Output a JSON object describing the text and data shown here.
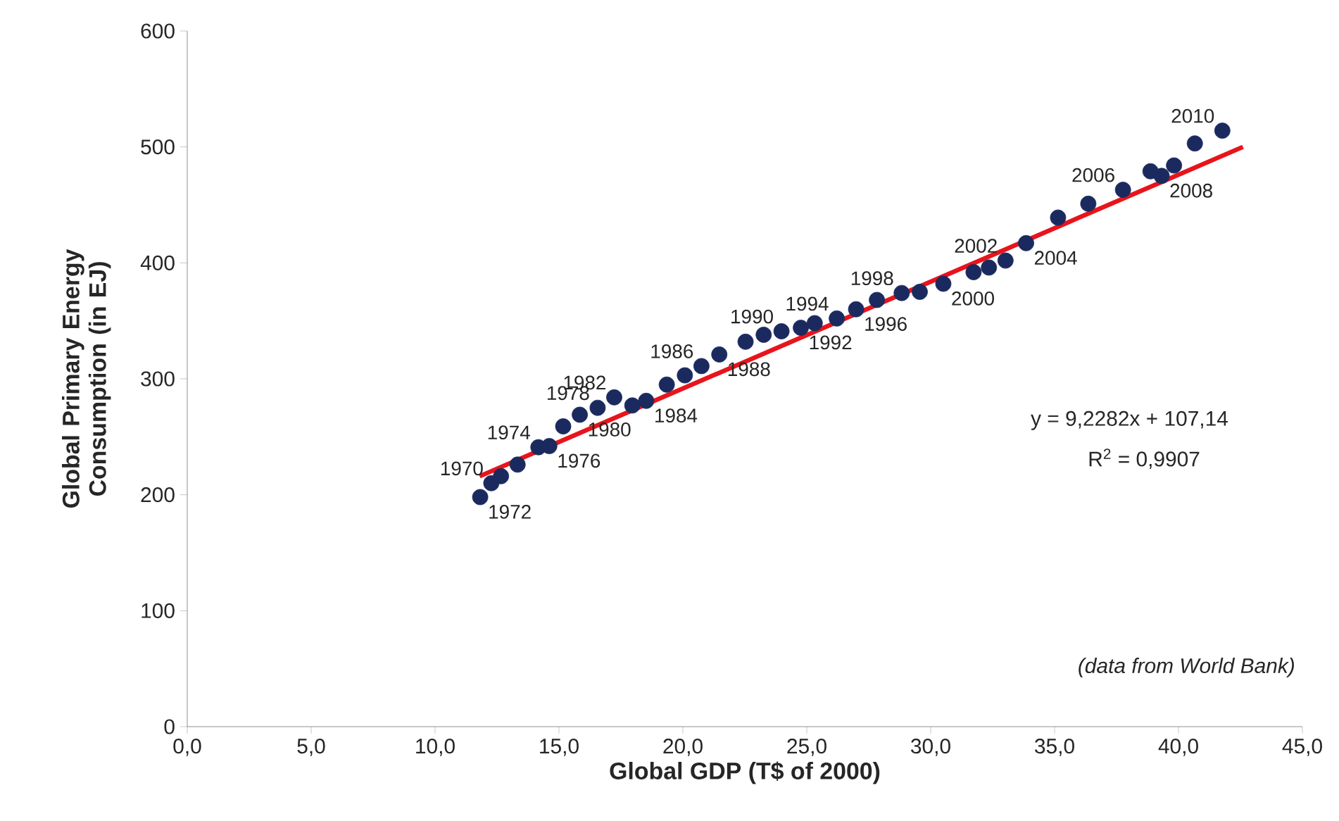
{
  "chart_data": {
    "type": "scatter",
    "xlabel": "Global GDP (T$ of 2000)",
    "ylabel": "Global Primary Energy Consumption (in EJ)",
    "xlim": [
      0,
      45
    ],
    "ylim": [
      0,
      600
    ],
    "xticks": [
      {
        "value": 0,
        "label": "0,0"
      },
      {
        "value": 5,
        "label": "5,0"
      },
      {
        "value": 10,
        "label": "10,0"
      },
      {
        "value": 15,
        "label": "15,0"
      },
      {
        "value": 20,
        "label": "20,0"
      },
      {
        "value": 25,
        "label": "25,0"
      },
      {
        "value": 30,
        "label": "30,0"
      },
      {
        "value": 35,
        "label": "35,0"
      },
      {
        "value": 40,
        "label": "40,0"
      },
      {
        "value": 45,
        "label": "45,0"
      }
    ],
    "yticks": [
      0,
      100,
      200,
      300,
      400,
      500,
      600
    ],
    "series": [
      {
        "marker": "circle",
        "color": "#1b2a5e",
        "x": [
          11.82,
          12.27,
          12.66,
          13.33,
          14.17,
          14.61,
          15.17,
          15.84,
          16.56,
          17.23,
          17.96,
          18.52,
          19.35,
          20.08,
          20.75,
          21.47,
          22.53,
          23.26,
          23.98,
          24.76,
          25.32,
          26.21,
          26.99,
          27.83,
          28.83,
          29.56,
          30.51,
          31.73,
          32.35,
          33.02,
          33.85,
          35.14,
          36.36,
          37.76,
          38.87,
          39.32,
          39.82,
          40.66,
          41.77
        ],
        "values": [
          198,
          210,
          216,
          226,
          241,
          242,
          259,
          269,
          275,
          284,
          277,
          281,
          295,
          303,
          311,
          321,
          332,
          338,
          341,
          344,
          348,
          352,
          360,
          368,
          374,
          375,
          382,
          392,
          396,
          402,
          417,
          439,
          451,
          463,
          479,
          475,
          484,
          503,
          514
        ]
      },
      {
        "type": "line",
        "marker": "none",
        "color": "#e8141c",
        "x": [
          11.8,
          42.6
        ],
        "values": [
          216,
          500
        ]
      }
    ],
    "annotations": [
      {
        "text": "1970",
        "x": 12.27,
        "y": 210
      },
      {
        "text": "1972",
        "x": 11.82,
        "y": 198
      },
      {
        "text": "1974",
        "x": 14.17,
        "y": 241
      },
      {
        "text": "1976",
        "x": 14.61,
        "y": 242
      },
      {
        "text": "1978",
        "x": 16.56,
        "y": 275
      },
      {
        "text": "1980",
        "x": 15.84,
        "y": 269
      },
      {
        "text": "1982",
        "x": 17.23,
        "y": 284
      },
      {
        "text": "1984",
        "x": 18.52,
        "y": 281
      },
      {
        "text": "1986",
        "x": 20.75,
        "y": 311
      },
      {
        "text": "1988",
        "x": 21.47,
        "y": 321
      },
      {
        "text": "1990",
        "x": 23.98,
        "y": 341
      },
      {
        "text": "1992",
        "x": 24.76,
        "y": 344
      },
      {
        "text": "1994",
        "x": 26.21,
        "y": 352
      },
      {
        "text": "1996",
        "x": 26.99,
        "y": 360
      },
      {
        "text": "1998",
        "x": 28.83,
        "y": 374
      },
      {
        "text": "2000",
        "x": 30.51,
        "y": 382
      },
      {
        "text": "2002",
        "x": 33.02,
        "y": 402
      },
      {
        "text": "2004",
        "x": 33.85,
        "y": 417
      },
      {
        "text": "2006",
        "x": 37.76,
        "y": 463
      },
      {
        "text": "2008",
        "x": 39.32,
        "y": 475
      },
      {
        "text": "2010",
        "x": 41.77,
        "y": 514
      },
      "y = 9,2282x + 107,14",
      "R$^{2}$ = 0,9907",
      "*(data from World Bank)*"
    ]
  }
}
